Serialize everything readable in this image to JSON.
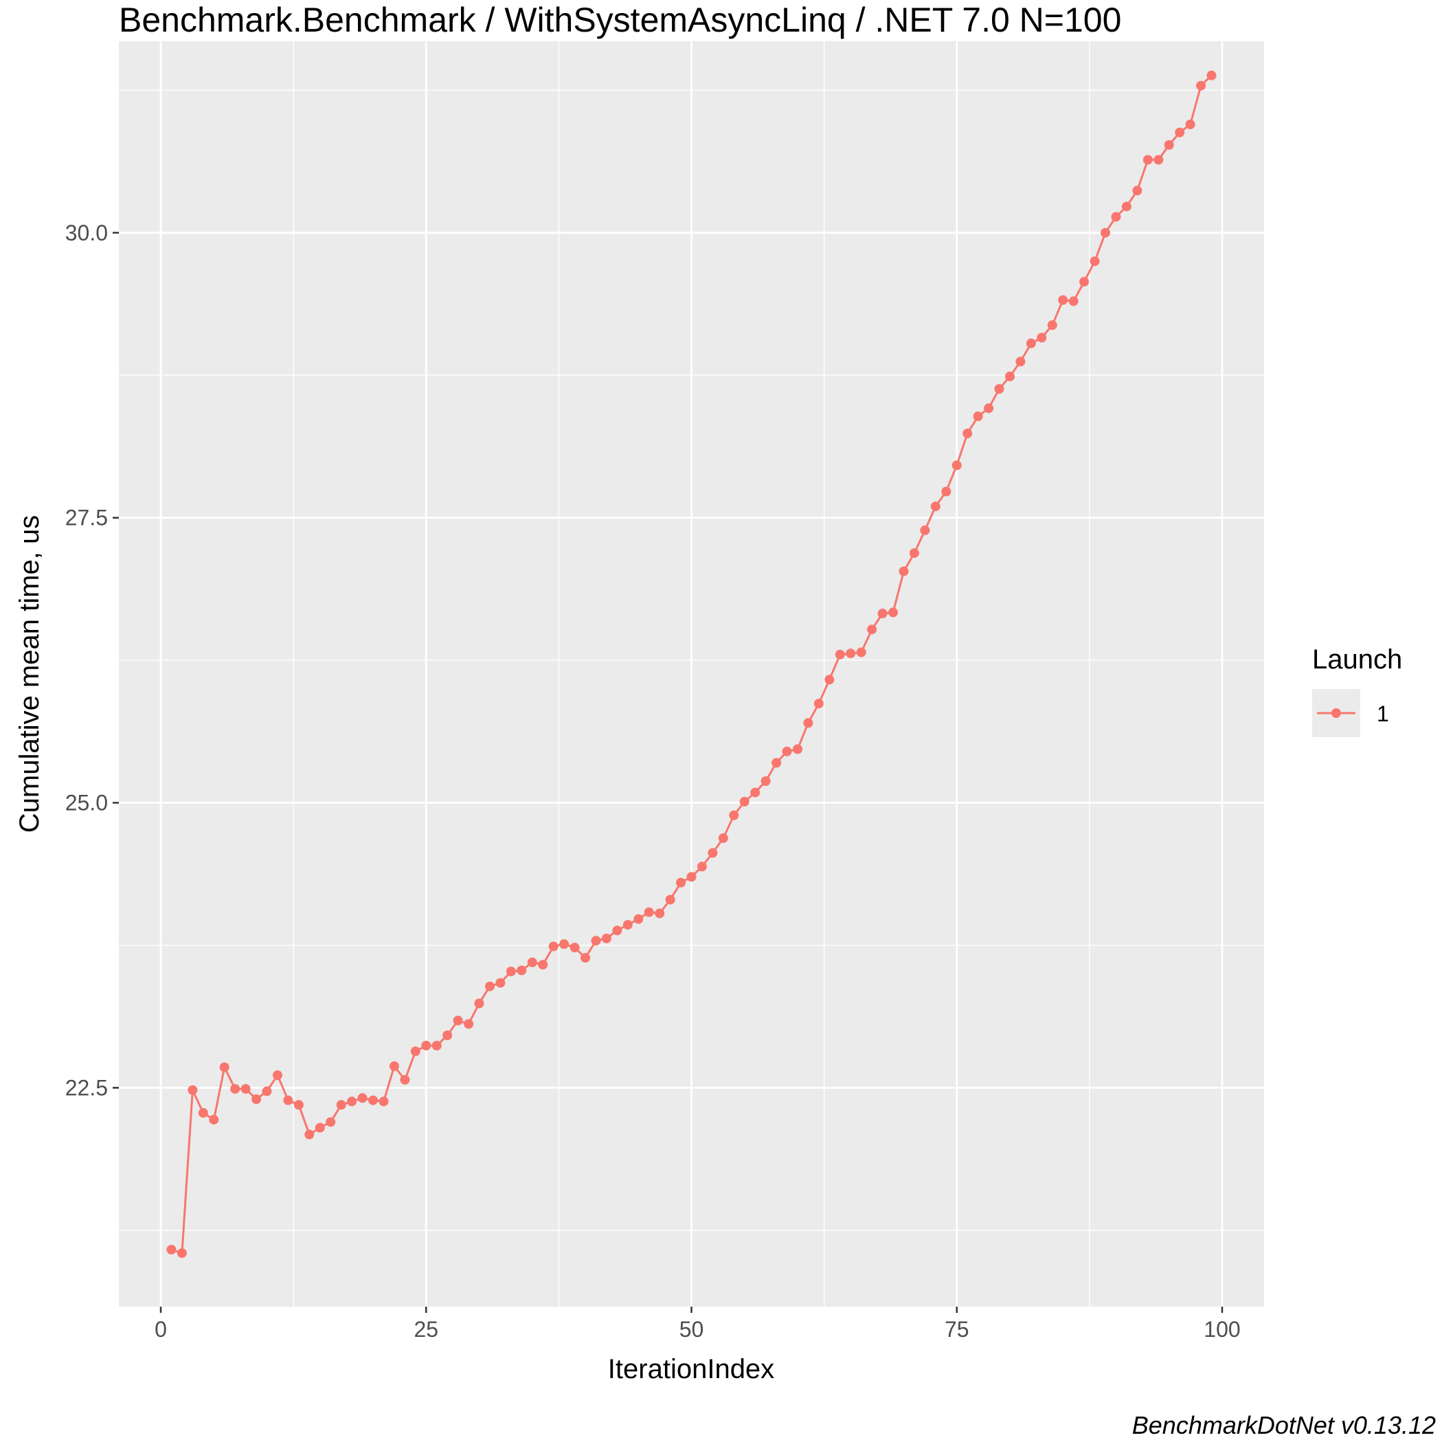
{
  "chart_data": {
    "type": "line",
    "title": "Benchmark.Benchmark / WithSystemAsyncLinq / .NET 7.0 N=100",
    "xlabel": "IterationIndex",
    "ylabel": "Cumulative mean time, us",
    "caption": "BenchmarkDotNet v0.13.12",
    "xlim": [
      -3.95,
      103.95
    ],
    "ylim": [
      20.58,
      31.68
    ],
    "x_ticks": [
      0,
      25,
      50,
      75,
      100
    ],
    "x_tick_labels": [
      "0",
      "25",
      "50",
      "75",
      "100"
    ],
    "y_ticks": [
      22.5,
      25.0,
      27.5,
      30.0
    ],
    "y_tick_labels": [
      "22.5",
      "25.0",
      "27.5",
      "30.0"
    ],
    "grid": true,
    "legend_placement": "right",
    "legend": {
      "title": "Launch",
      "entries": [
        "1"
      ]
    },
    "series": [
      {
        "name": "1",
        "color": "#F8766D",
        "x": [
          1,
          2,
          3,
          4,
          5,
          6,
          7,
          8,
          9,
          10,
          11,
          12,
          13,
          14,
          15,
          16,
          17,
          18,
          19,
          20,
          21,
          22,
          23,
          24,
          25,
          26,
          27,
          28,
          29,
          30,
          31,
          32,
          33,
          34,
          35,
          36,
          37,
          38,
          39,
          40,
          41,
          42,
          43,
          44,
          45,
          46,
          47,
          48,
          49,
          50,
          51,
          52,
          53,
          54,
          55,
          56,
          57,
          58,
          59,
          60,
          61,
          62,
          63,
          64,
          65,
          66,
          67,
          68,
          69,
          70,
          71,
          72,
          73,
          74,
          75,
          76,
          77,
          78,
          79,
          80,
          81,
          82,
          83,
          84,
          85,
          86,
          87,
          88,
          89,
          90,
          91,
          92,
          93,
          94,
          95,
          96,
          97,
          98,
          99
        ],
        "values": [
          21.08,
          21.05,
          22.48,
          22.28,
          22.22,
          22.68,
          22.49,
          22.49,
          22.4,
          22.47,
          22.61,
          22.39,
          22.35,
          22.09,
          22.15,
          22.2,
          22.35,
          22.38,
          22.41,
          22.39,
          22.38,
          22.69,
          22.57,
          22.82,
          22.87,
          22.87,
          22.96,
          23.09,
          23.06,
          23.24,
          23.39,
          23.42,
          23.52,
          23.53,
          23.6,
          23.58,
          23.74,
          23.76,
          23.73,
          23.64,
          23.79,
          23.81,
          23.88,
          23.93,
          23.98,
          24.04,
          24.03,
          24.15,
          24.3,
          24.35,
          24.44,
          24.56,
          24.69,
          24.89,
          25.01,
          25.09,
          25.19,
          25.35,
          25.45,
          25.47,
          25.7,
          25.87,
          26.08,
          26.3,
          26.31,
          26.32,
          26.52,
          26.66,
          26.67,
          27.03,
          27.19,
          27.39,
          27.6,
          27.73,
          27.96,
          28.24,
          28.39,
          28.46,
          28.63,
          28.74,
          28.87,
          29.03,
          29.08,
          29.19,
          29.41,
          29.4,
          29.57,
          29.75,
          30.0,
          30.14,
          30.23,
          30.37,
          30.64,
          30.64,
          30.77,
          30.88,
          30.95,
          31.29,
          31.38
        ]
      }
    ]
  }
}
